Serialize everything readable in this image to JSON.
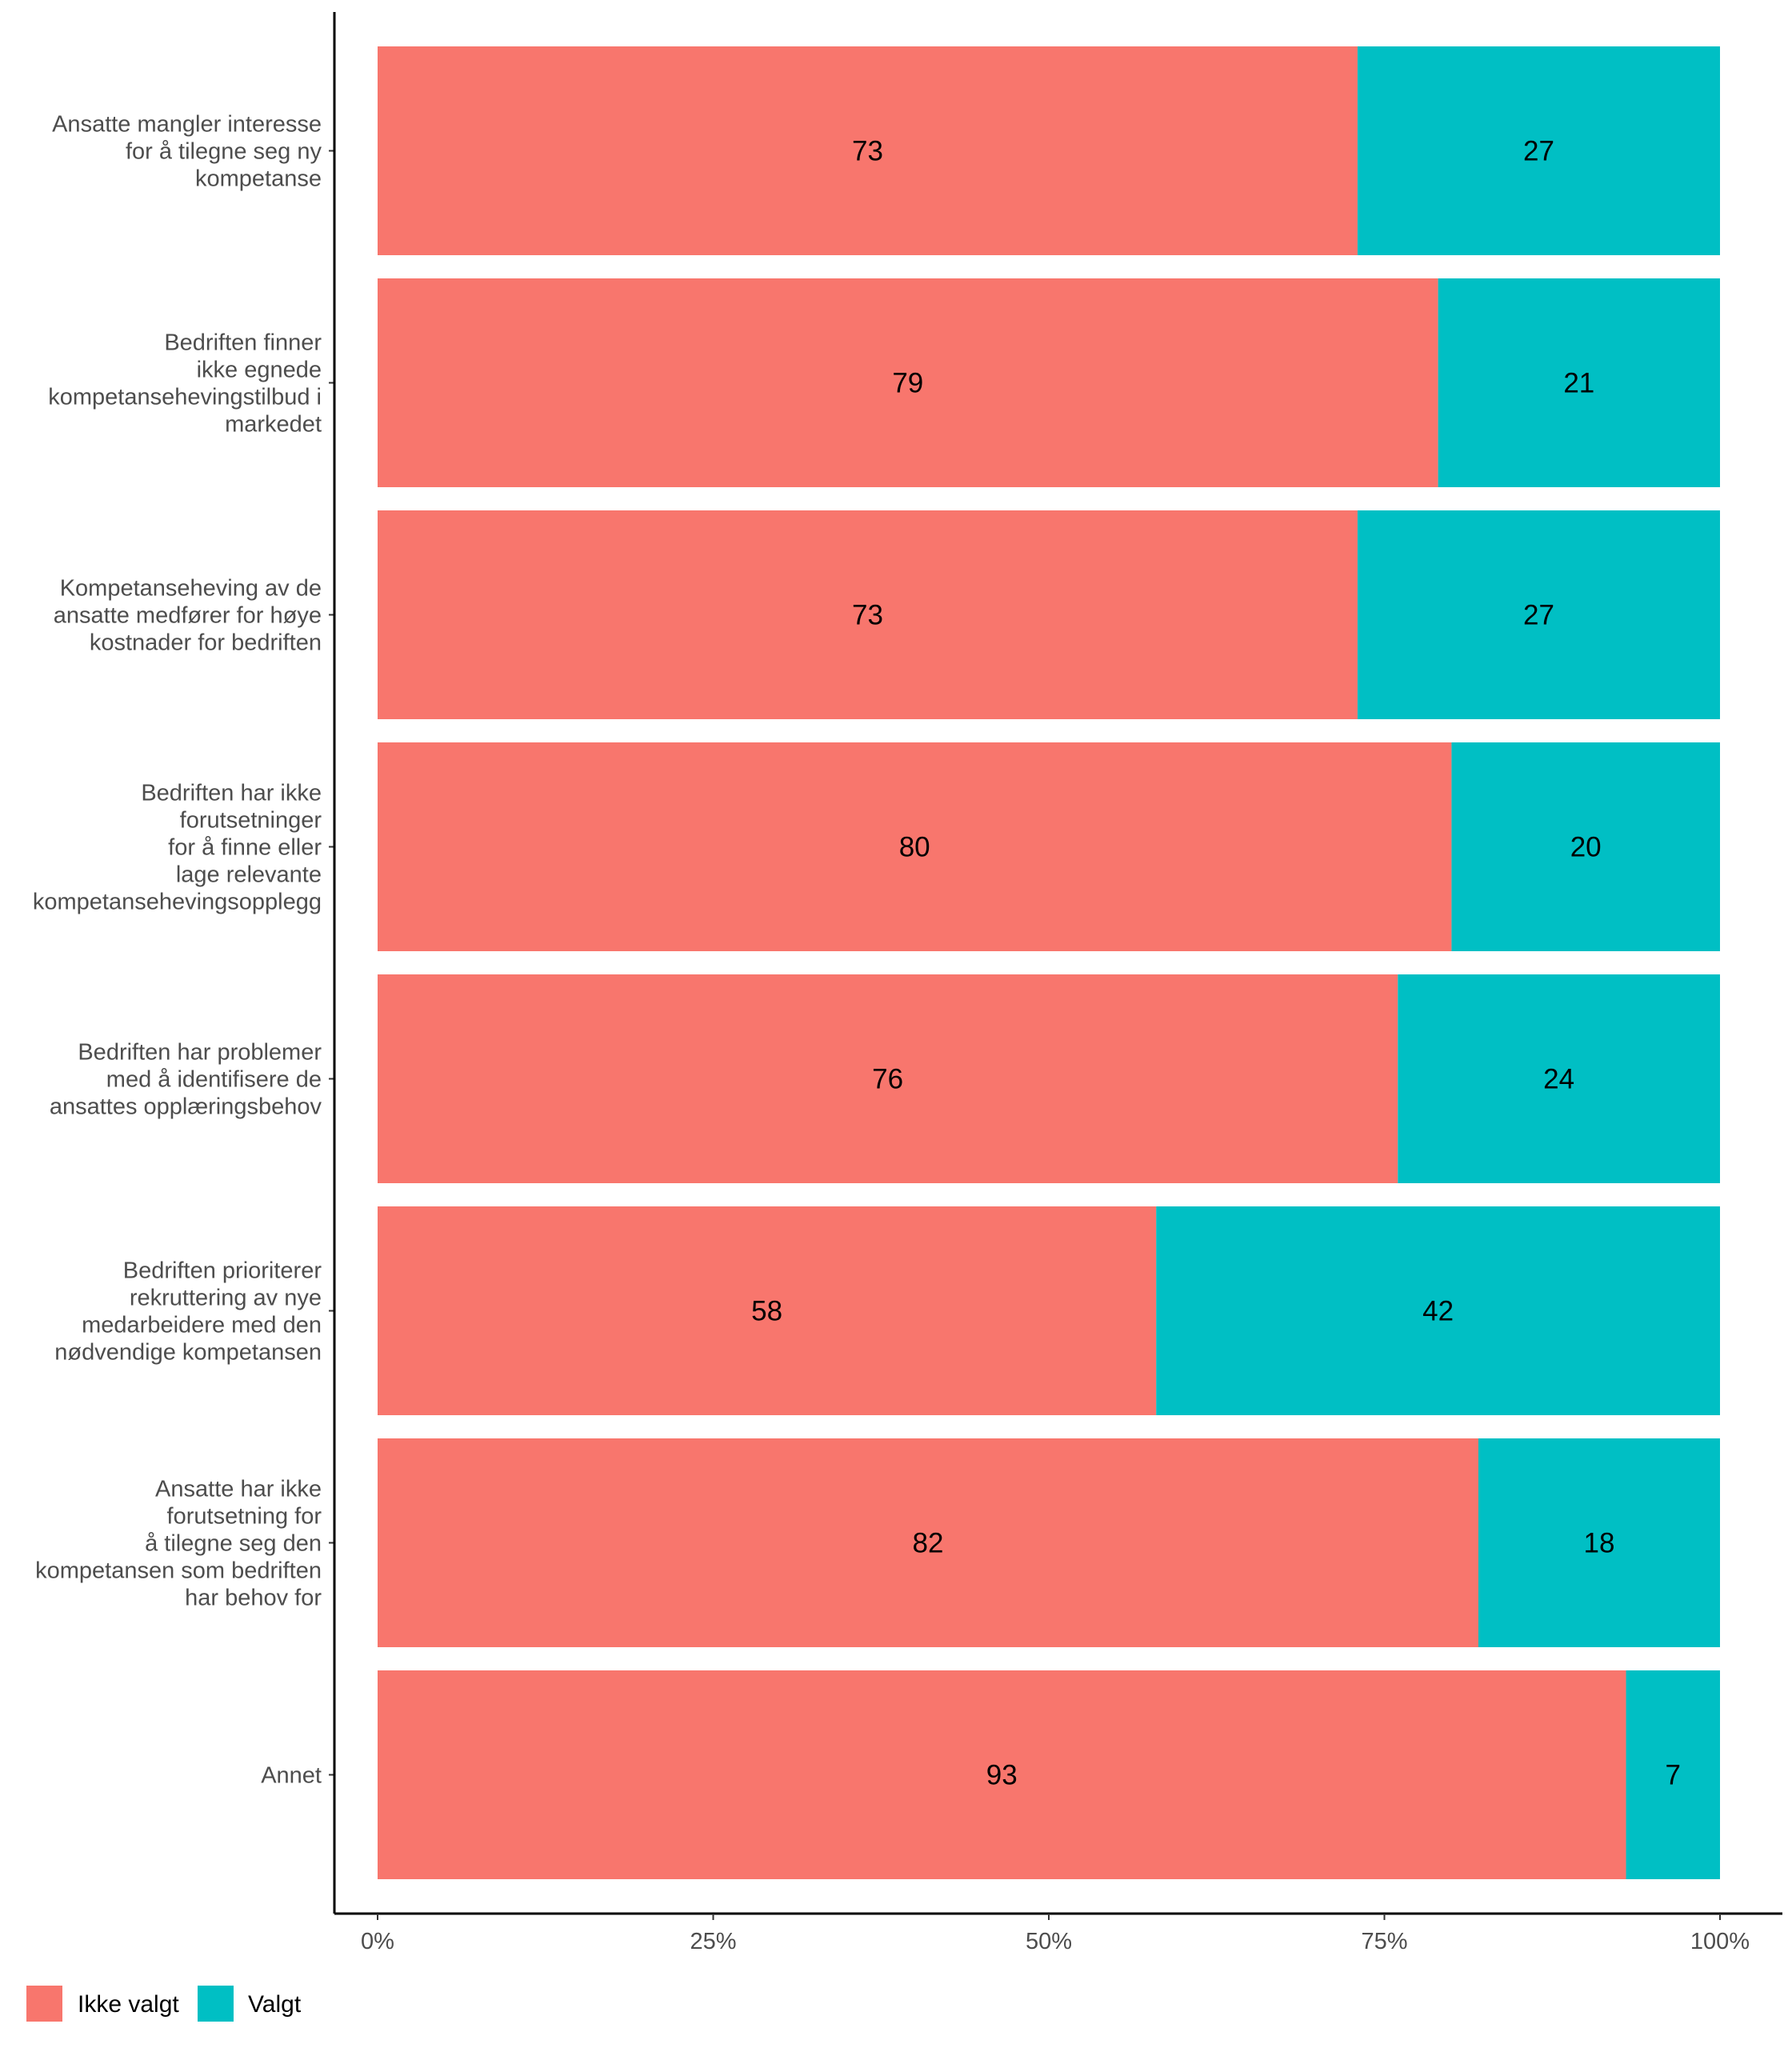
{
  "chart_data": {
    "type": "bar",
    "orientation": "horizontal",
    "stacked": true,
    "percent_scale": true,
    "categories": [
      [
        "Ansatte mangler interesse",
        "for å tilegne seg ny",
        "kompetanse"
      ],
      [
        "Bedriften finner",
        "ikke egnede",
        "kompetansehevingstilbud i",
        "markedet"
      ],
      [
        "Kompetanseheving av de",
        "ansatte medfører for høye",
        "kostnader for bedriften"
      ],
      [
        "Bedriften har ikke",
        "forutsetninger",
        "for å finne eller",
        "lage relevante",
        "kompetansehevingsopplegg"
      ],
      [
        "Bedriften har problemer",
        "med å identifisere de",
        "ansattes opplæringsbehov"
      ],
      [
        "Bedriften prioriterer",
        "rekruttering av nye",
        "medarbeidere med den",
        "nødvendige kompetansen"
      ],
      [
        "Ansatte har ikke",
        "forutsetning for",
        "å tilegne seg den",
        "kompetansen som bedriften",
        "har behov for"
      ],
      [
        "Annet"
      ]
    ],
    "series": [
      {
        "name": "Ikke valgt",
        "color": "#F8766D",
        "values": [
          73,
          79,
          73,
          80,
          76,
          58,
          82,
          93
        ]
      },
      {
        "name": "Valgt",
        "color": "#00BFC4",
        "values": [
          27,
          21,
          27,
          20,
          24,
          42,
          18,
          7
        ]
      }
    ],
    "x_ticks": [
      "0%",
      "25%",
      "50%",
      "75%",
      "100%"
    ],
    "xlim": [
      0,
      100
    ],
    "xlabel": "",
    "ylabel": "",
    "grid": false,
    "legend_position": "bottom-left"
  }
}
